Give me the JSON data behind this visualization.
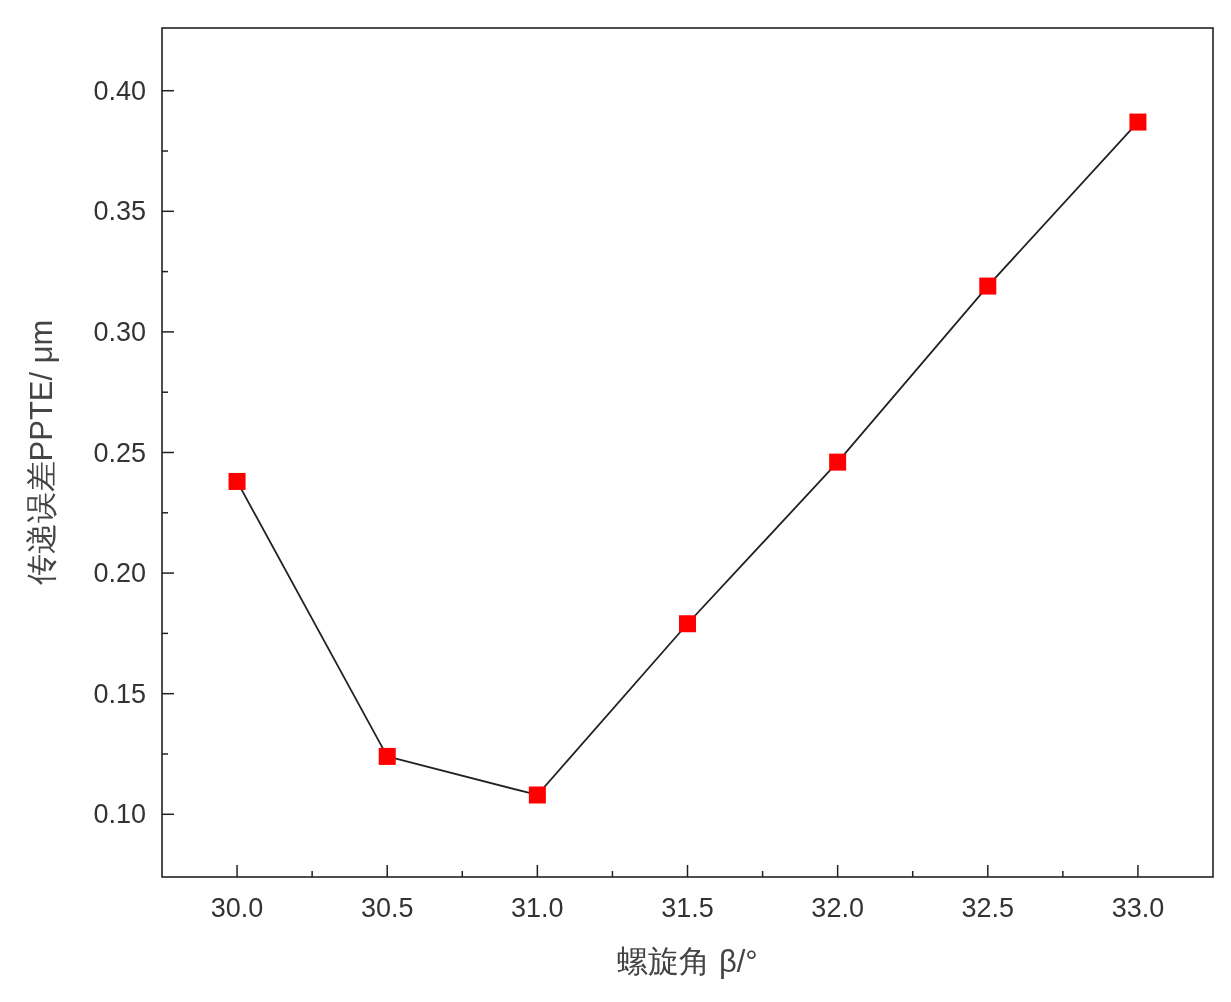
{
  "chart_data": {
    "type": "line",
    "xlabel": "螺旋角 β/°",
    "ylabel": "传递误差PPTE/ μm",
    "x": [
      30.0,
      30.5,
      31.0,
      31.5,
      32.0,
      32.5,
      33.0
    ],
    "series": [
      {
        "color": "#ff0000",
        "values": [
          0.238,
          0.124,
          0.108,
          0.179,
          0.246,
          0.319,
          0.387
        ]
      }
    ],
    "marker": "square",
    "line_style": "solid",
    "grid": false,
    "xlim": [
      29.75,
      33.25
    ],
    "ylim": [
      0.074,
      0.426
    ],
    "xticks": [
      {
        "value": 30,
        "label": "30.0"
      },
      30.5,
      {
        "value": 31,
        "label": "31.0"
      },
      31.5,
      {
        "value": 32,
        "label": "32.0"
      },
      32.5,
      {
        "value": 33,
        "label": "33.0"
      }
    ],
    "yticks": [
      {
        "value": 0.1,
        "label": "0.10"
      },
      0.15,
      {
        "value": 0.2,
        "label": "0.20"
      },
      0.25,
      {
        "value": 0.3,
        "label": "0.30"
      },
      0.35,
      {
        "value": 0.4,
        "label": "0.40"
      }
    ]
  }
}
